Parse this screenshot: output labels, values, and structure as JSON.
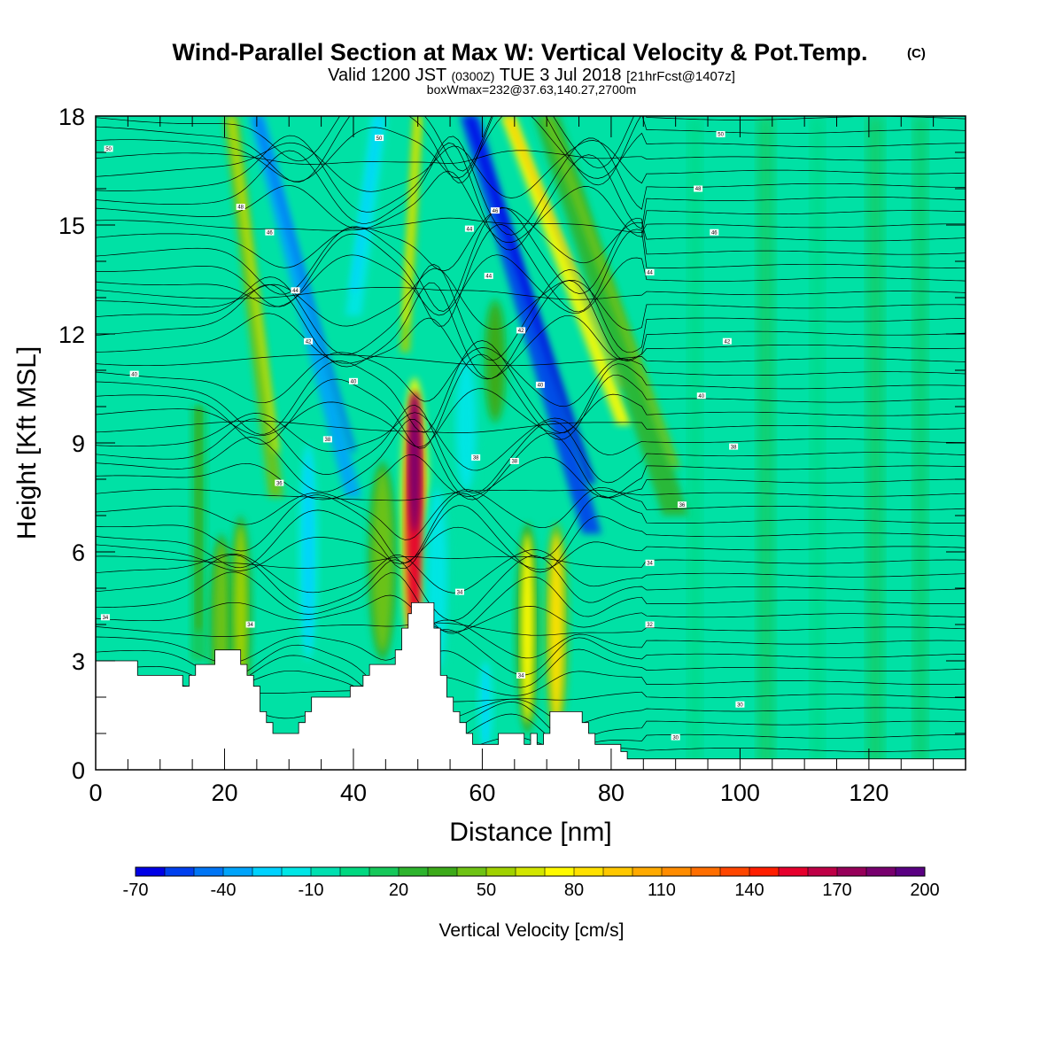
{
  "header": {
    "title": "Wind-Parallel Section at Max W: Vertical Velocity & Pot.Temp.",
    "title_mark": "(C)",
    "valid_prefix": "Valid 1200 JST",
    "valid_utc": "(0300Z)",
    "valid_date": "TUE 3 Jul 2018",
    "forecast": "[21hrFcst@1407z]",
    "boxwmax": "boxWmax=232@37.63,140.27,2700m"
  },
  "chart_data": {
    "type": "heatmap",
    "xlabel": "Distance [nm]",
    "ylabel": "Height [Kft MSL]",
    "xlim": [
      0,
      135
    ],
    "ylim": [
      0,
      18
    ],
    "x_ticks": [
      0,
      20,
      40,
      60,
      80,
      100,
      120
    ],
    "y_ticks": [
      0,
      3,
      6,
      9,
      12,
      15,
      18
    ],
    "colorbar": {
      "title": "Vertical Velocity [cm/s]",
      "min": -70,
      "max": 200,
      "step": 10,
      "tick_labels": [
        "-70",
        "-40",
        "-10",
        "20",
        "50",
        "80",
        "110",
        "140",
        "170",
        "200"
      ],
      "colors": [
        "#0000e6",
        "#0040ee",
        "#0075f5",
        "#00a4fb",
        "#00d2ff",
        "#00e6e6",
        "#00e0b0",
        "#00d880",
        "#15c85a",
        "#2db42d",
        "#3caa19",
        "#6ec314",
        "#a0d200",
        "#d2e600",
        "#fffa00",
        "#ffe100",
        "#ffc800",
        "#ffaa00",
        "#ff8c00",
        "#ff6e00",
        "#ff4600",
        "#ff1e00",
        "#e6002d",
        "#be0046",
        "#96005a",
        "#78006e",
        "#5a0082"
      ]
    },
    "background_value": 0,
    "background_color": "#00e1a5",
    "w_features": [
      {
        "x": 19.5,
        "y0": 1.5,
        "y1": 6.5,
        "v": 45,
        "w": 2.2
      },
      {
        "x": 22.5,
        "y0": 1.5,
        "y1": 7.0,
        "v": 55,
        "w": 2.0
      },
      {
        "x": 33.0,
        "y0": 3.0,
        "y1": 9.0,
        "v": -25,
        "w": 1.5
      },
      {
        "x": 49.5,
        "y0": 3.0,
        "y1": 10.8,
        "v": 150,
        "w": 2.8
      },
      {
        "x": 44.5,
        "y0": 3.0,
        "y1": 8.5,
        "v": 45,
        "w": 3.0
      },
      {
        "x": 53.0,
        "y0": 2.5,
        "y1": 8.0,
        "v": -20,
        "w": 3.0
      },
      {
        "x": 67.0,
        "y0": 1.0,
        "y1": 6.8,
        "v": 70,
        "w": 2.0
      },
      {
        "x": 71.5,
        "y0": 1.0,
        "y1": 6.8,
        "v": 80,
        "w": 2.2
      },
      {
        "x": 60.5,
        "y0": 0.5,
        "y1": 3.0,
        "v": -30,
        "w": 0.8
      },
      {
        "x": 62.0,
        "y0": 9.5,
        "y1": 13.0,
        "v": 30,
        "w": 2.5
      },
      {
        "x": 57.5,
        "y0": 7.5,
        "y1": 11.5,
        "v": -20,
        "w": 3.0
      }
    ],
    "w_slant_bands": [
      {
        "x_top": 25.0,
        "x_bottom": 40.0,
        "y_top": 18,
        "y_bottom": 7.5,
        "v": -35,
        "w": 2.5
      },
      {
        "x_top": 21.0,
        "x_bottom": 28.0,
        "y_top": 18,
        "y_bottom": 7.5,
        "v": 45,
        "w": 2.3
      },
      {
        "x_top": 58.0,
        "x_bottom": 77.0,
        "y_top": 18,
        "y_bottom": 6.5,
        "v": -55,
        "w": 3.0
      },
      {
        "x_top": 64.0,
        "x_bottom": 82.0,
        "y_top": 18,
        "y_bottom": 9.5,
        "v": 70,
        "w": 2.3
      },
      {
        "x_top": 50.0,
        "x_bottom": 48.0,
        "y_top": 18,
        "y_bottom": 11.5,
        "v": 50,
        "w": 1.5
      },
      {
        "x_top": 44.0,
        "x_bottom": 40.0,
        "y_top": 18,
        "y_bottom": 12.5,
        "v": -15,
        "w": 2.5
      },
      {
        "x_top": 70.0,
        "x_bottom": 90.0,
        "y_top": 18,
        "y_bottom": 7.0,
        "v": 25,
        "w": 4.0
      },
      {
        "x_top": 16.0,
        "x_bottom": 16.0,
        "y_top": 10.0,
        "y_bottom": 3.0,
        "v": 15,
        "w": 2.5
      }
    ],
    "w_stripes": [
      {
        "x": 104,
        "v": 10,
        "w": 2.5
      },
      {
        "x": 112,
        "v": 8,
        "w": 2.0
      },
      {
        "x": 121,
        "v": 10,
        "w": 2.5
      },
      {
        "x": 128,
        "v": 12,
        "w": 2.0
      },
      {
        "x": 93,
        "v": 8,
        "w": 2.0
      }
    ],
    "terrain": [
      {
        "x": 0,
        "y": 3.0
      },
      {
        "x": 5.5,
        "y": 3.0
      },
      {
        "x": 6.5,
        "y": 2.6
      },
      {
        "x": 12.5,
        "y": 2.6
      },
      {
        "x": 13.5,
        "y": 2.3
      },
      {
        "x": 14.5,
        "y": 2.6
      },
      {
        "x": 15.5,
        "y": 2.9
      },
      {
        "x": 17.5,
        "y": 2.9
      },
      {
        "x": 18.5,
        "y": 3.3
      },
      {
        "x": 21.5,
        "y": 3.3
      },
      {
        "x": 22.5,
        "y": 2.9
      },
      {
        "x": 23.5,
        "y": 2.6
      },
      {
        "x": 24.5,
        "y": 2.3
      },
      {
        "x": 25.5,
        "y": 1.6
      },
      {
        "x": 26.5,
        "y": 1.3
      },
      {
        "x": 27.5,
        "y": 1.0
      },
      {
        "x": 30.5,
        "y": 1.0
      },
      {
        "x": 31.5,
        "y": 1.3
      },
      {
        "x": 32.5,
        "y": 1.6
      },
      {
        "x": 33.5,
        "y": 2.0
      },
      {
        "x": 36.5,
        "y": 2.0
      },
      {
        "x": 37.5,
        "y": 2.0
      },
      {
        "x": 39.5,
        "y": 2.3
      },
      {
        "x": 40.5,
        "y": 2.3
      },
      {
        "x": 41.5,
        "y": 2.6
      },
      {
        "x": 42.5,
        "y": 2.9
      },
      {
        "x": 45.5,
        "y": 2.9
      },
      {
        "x": 46.5,
        "y": 3.3
      },
      {
        "x": 47.5,
        "y": 3.9
      },
      {
        "x": 48.5,
        "y": 4.3
      },
      {
        "x": 49.0,
        "y": 4.6
      },
      {
        "x": 51.5,
        "y": 4.6
      },
      {
        "x": 52.5,
        "y": 3.9
      },
      {
        "x": 53.5,
        "y": 2.6
      },
      {
        "x": 54.5,
        "y": 2.0
      },
      {
        "x": 55.5,
        "y": 1.6
      },
      {
        "x": 56.5,
        "y": 1.3
      },
      {
        "x": 57.5,
        "y": 1.0
      },
      {
        "x": 58.5,
        "y": 0.7
      },
      {
        "x": 61.5,
        "y": 0.7
      },
      {
        "x": 62.5,
        "y": 1.0
      },
      {
        "x": 65.5,
        "y": 1.0
      },
      {
        "x": 66.5,
        "y": 0.7
      },
      {
        "x": 67.5,
        "y": 1.0
      },
      {
        "x": 68.5,
        "y": 0.7
      },
      {
        "x": 69.5,
        "y": 1.0
      },
      {
        "x": 70.5,
        "y": 1.6
      },
      {
        "x": 74.5,
        "y": 1.6
      },
      {
        "x": 75.5,
        "y": 1.3
      },
      {
        "x": 76.5,
        "y": 1.0
      },
      {
        "x": 77.5,
        "y": 0.7
      },
      {
        "x": 80.5,
        "y": 0.7
      },
      {
        "x": 81.5,
        "y": 0.5
      },
      {
        "x": 82.5,
        "y": 0.3
      },
      {
        "x": 135,
        "y": 0.3
      }
    ],
    "theta_levels": [
      30,
      32,
      34,
      36,
      38,
      40,
      42,
      44,
      46,
      48,
      50
    ],
    "theta_label_positions": [
      {
        "label": "50",
        "x": 2,
        "y": 17.1
      },
      {
        "label": "50",
        "x": 44,
        "y": 17.4
      },
      {
        "label": "50",
        "x": 97,
        "y": 17.5
      },
      {
        "label": "48",
        "x": 22.5,
        "y": 15.5
      },
      {
        "label": "48",
        "x": 93.5,
        "y": 16.0
      },
      {
        "label": "46",
        "x": 27,
        "y": 14.8
      },
      {
        "label": "46",
        "x": 62,
        "y": 15.4
      },
      {
        "label": "46",
        "x": 96,
        "y": 14.8
      },
      {
        "label": "44",
        "x": 58,
        "y": 14.9
      },
      {
        "label": "44",
        "x": 31,
        "y": 13.2
      },
      {
        "label": "44",
        "x": 61,
        "y": 13.6
      },
      {
        "label": "44",
        "x": 86,
        "y": 13.7
      },
      {
        "label": "42",
        "x": 33,
        "y": 11.8
      },
      {
        "label": "42",
        "x": 66,
        "y": 12.1
      },
      {
        "label": "42",
        "x": 98,
        "y": 11.8
      },
      {
        "label": "40",
        "x": 6,
        "y": 10.9
      },
      {
        "label": "40",
        "x": 40,
        "y": 10.7
      },
      {
        "label": "40",
        "x": 69,
        "y": 10.6
      },
      {
        "label": "40",
        "x": 94,
        "y": 10.3
      },
      {
        "label": "38",
        "x": 36,
        "y": 9.1
      },
      {
        "label": "38",
        "x": 59,
        "y": 8.6
      },
      {
        "label": "38",
        "x": 65,
        "y": 8.5
      },
      {
        "label": "38",
        "x": 99,
        "y": 8.9
      },
      {
        "label": "36",
        "x": 28.5,
        "y": 7.9
      },
      {
        "label": "36",
        "x": 91,
        "y": 7.3
      },
      {
        "label": "34",
        "x": 86,
        "y": 5.7
      },
      {
        "label": "34",
        "x": 56.5,
        "y": 4.9
      },
      {
        "label": "34",
        "x": 1.5,
        "y": 4.2
      },
      {
        "label": "34",
        "x": 24,
        "y": 4.0
      },
      {
        "label": "34",
        "x": 66,
        "y": 2.6
      },
      {
        "label": "32",
        "x": 86,
        "y": 4.0
      },
      {
        "label": "30",
        "x": 100,
        "y": 1.8
      },
      {
        "label": "30",
        "x": 90,
        "y": 0.9
      }
    ]
  }
}
